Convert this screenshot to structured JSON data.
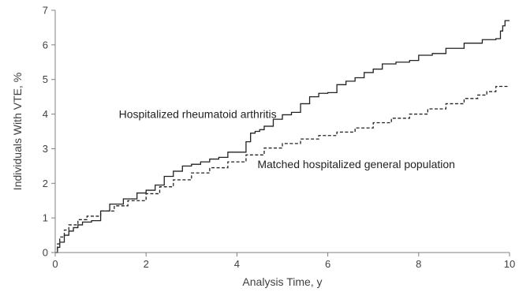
{
  "chart_data": {
    "type": "line",
    "title": "",
    "xlabel": "Analysis Time, y",
    "ylabel": "Individuals With VTE, %",
    "xlim": [
      0,
      10
    ],
    "ylim": [
      0,
      7
    ],
    "xticks": [
      0,
      2,
      4,
      6,
      8,
      10
    ],
    "yticks": [
      0,
      1,
      2,
      3,
      4,
      5,
      6,
      7
    ],
    "grid": false,
    "legend": "none",
    "step": true,
    "series": [
      {
        "name": "Hospitalized rheumatoid arthritis",
        "line_style": "solid",
        "color": "#222222",
        "x": [
          0,
          0.05,
          0.1,
          0.2,
          0.3,
          0.4,
          0.5,
          0.6,
          0.8,
          1.0,
          1.2,
          1.5,
          1.8,
          2.0,
          2.2,
          2.4,
          2.6,
          2.8,
          3.0,
          3.2,
          3.4,
          3.6,
          3.8,
          4.0,
          4.2,
          4.3,
          4.4,
          4.5,
          4.6,
          4.8,
          5.0,
          5.2,
          5.4,
          5.6,
          5.8,
          6.0,
          6.2,
          6.4,
          6.6,
          6.8,
          7.0,
          7.2,
          7.5,
          7.8,
          8.0,
          8.3,
          8.6,
          9.0,
          9.4,
          9.7,
          9.8,
          9.85,
          9.9,
          10.0
        ],
        "y": [
          0,
          0.15,
          0.3,
          0.5,
          0.62,
          0.72,
          0.8,
          0.88,
          0.92,
          1.2,
          1.4,
          1.55,
          1.72,
          1.8,
          1.95,
          2.2,
          2.35,
          2.5,
          2.55,
          2.62,
          2.7,
          2.75,
          2.9,
          2.9,
          3.2,
          3.45,
          3.5,
          3.55,
          3.65,
          3.85,
          3.98,
          4.05,
          4.3,
          4.5,
          4.6,
          4.62,
          4.85,
          4.95,
          5.05,
          5.2,
          5.3,
          5.45,
          5.5,
          5.55,
          5.7,
          5.75,
          5.9,
          6.05,
          6.15,
          6.18,
          6.4,
          6.55,
          6.7,
          6.7
        ]
      },
      {
        "name": "Matched hospitalized general population",
        "line_style": "dashed",
        "color": "#222222",
        "x": [
          0,
          0.05,
          0.1,
          0.2,
          0.3,
          0.5,
          0.7,
          1.0,
          1.3,
          1.6,
          2.0,
          2.3,
          2.6,
          3.0,
          3.4,
          3.8,
          4.2,
          4.6,
          5.0,
          5.4,
          5.8,
          6.2,
          6.6,
          7.0,
          7.4,
          7.8,
          8.2,
          8.6,
          9.0,
          9.3,
          9.5,
          9.7,
          10.0
        ],
        "y": [
          0,
          0.25,
          0.45,
          0.65,
          0.8,
          0.95,
          1.05,
          1.2,
          1.35,
          1.5,
          1.7,
          1.9,
          2.1,
          2.3,
          2.45,
          2.62,
          2.82,
          3.02,
          3.15,
          3.28,
          3.38,
          3.48,
          3.6,
          3.75,
          3.88,
          4.0,
          4.15,
          4.3,
          4.45,
          4.55,
          4.65,
          4.8,
          4.8
        ]
      }
    ],
    "annotations": [
      {
        "text": "Hospitalized rheumatoid arthritis",
        "x": 1.4,
        "y": 4.0,
        "series": 0
      },
      {
        "text": "Matched hospitalized general population",
        "x": 4.45,
        "y": 2.55,
        "series": 1
      }
    ]
  }
}
